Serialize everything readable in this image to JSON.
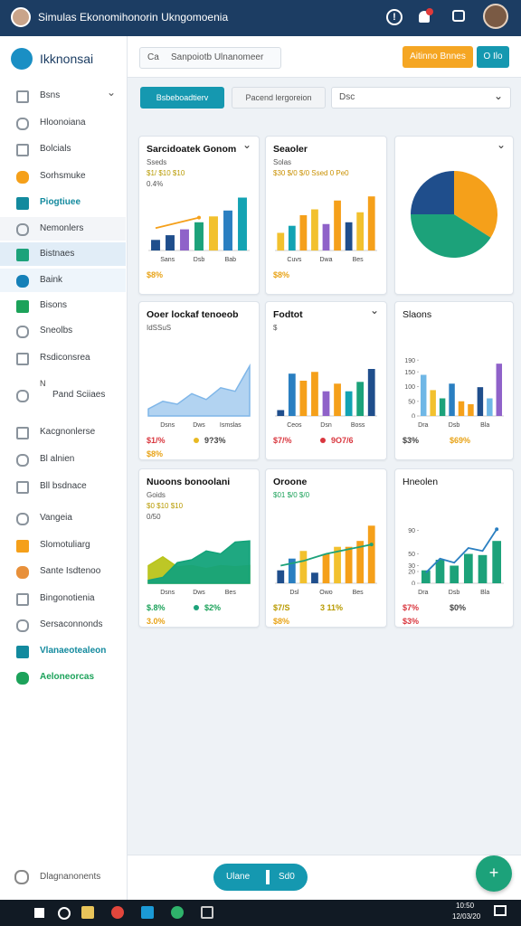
{
  "header": {
    "title": "Simulas Ekonomihonorin Ukngomoenia"
  },
  "sidebar": {
    "logo": "Ikknonsai",
    "items": [
      {
        "label": "Bsns",
        "expandable": true
      },
      {
        "label": "Hloonoiana"
      },
      {
        "label": "Bolcials"
      },
      {
        "label": "Sorhsmuke",
        "icon_color": "#f5a01a"
      },
      {
        "label": "Piogtiuee",
        "color": "#138a9e",
        "icon_color": "#138a9e"
      },
      {
        "label": "Nemonlers",
        "background": "#f3f5f8"
      },
      {
        "label": "Bistnaes",
        "background": "#e1edf7",
        "icon_color": "#1ca27a"
      },
      {
        "label": "Baink",
        "background": "#eef5fb",
        "icon_color": "#1580b8"
      },
      {
        "label": "Bisons",
        "icon_color": "#1ca25a"
      },
      {
        "label": "Sneolbs"
      },
      {
        "label": "Rsdiconsrea"
      },
      {
        "label": "Pand Sciiaes",
        "prefix": "N"
      },
      {
        "label": "Kacgnonlerse"
      },
      {
        "label": "Bl alnien"
      },
      {
        "label": "Bll bsdnace"
      },
      {
        "label": "Vangeia"
      },
      {
        "label": "Slomotuliarg",
        "icon_color": "#f5a01a"
      },
      {
        "label": "Sante Isdtenoo",
        "icon_color": "#e8903a"
      },
      {
        "label": "Bingonotienia"
      },
      {
        "label": "Sersaconnonds"
      },
      {
        "label": "Vlanaeotealeon",
        "color": "#138a9e",
        "icon_color": "#138a9e"
      },
      {
        "label": "Aeloneorcas",
        "color": "#1ca25a",
        "icon_color": "#1ca25a"
      }
    ],
    "footer": "Dlagnanonents"
  },
  "toolbar": {
    "search_prefix": "Ca",
    "search": "Sanpoiotb Ulnanomeer",
    "primary_button": "Aitinno Bnnes",
    "secondary_button": "O Ilo"
  },
  "filters": {
    "tab_active": "Bsbeboadtierv",
    "tab": "Pacend lergoreion",
    "dropdown": "Dsc"
  },
  "cards": [
    {
      "title": "Sarcidoatek Gonom",
      "menu": true,
      "lines": [
        {
          "text": "Sseds"
        },
        {
          "text": "$1/ $10 $10",
          "color": "#b89a00"
        },
        {
          "text": "0.4%"
        }
      ],
      "chart": {
        "type": "bar",
        "ylim": [
          0,
          100
        ],
        "series": [
          {
            "type": "bar",
            "colors": [
              "#1f4e8c",
              "#1f4e8c",
              "#8f62c9",
              "#1ca27a",
              "#f2c12e",
              "#2a7fc1",
              "#13a3b3"
            ],
            "values": [
              18,
              26,
              36,
              48,
              58,
              68,
              90
            ]
          },
          {
            "type": "line",
            "color": "#f5a01a",
            "values": [
              38,
              44,
              50,
              56,
              null,
              null,
              null
            ]
          }
        ]
      },
      "categories": [
        "Sans",
        "Dsb",
        "Bab"
      ],
      "footer": [
        {
          "text": "$8%",
          "color": "#e8a317"
        }
      ]
    },
    {
      "title": "Seaoler",
      "lines": [
        {
          "text": "Solas"
        },
        {
          "text": "$30 $/0 $/0  Ssed 0 Pe0",
          "color": "#c99000"
        }
      ],
      "chart": {
        "type": "bar",
        "ylim": [
          0,
          100
        ],
        "series": [
          {
            "type": "bar",
            "colors": [
              "#f2c12e",
              "#13a3b3",
              "#f5a01a",
              "#f2c12e",
              "#8f62c9",
              "#f5a01a",
              "#1f4e8c",
              "#f2c12e",
              "#f5a01a"
            ],
            "values": [
              30,
              42,
              60,
              70,
              45,
              85,
              48,
              65,
              92
            ]
          }
        ]
      },
      "categories": [
        "Cuvs",
        "Dwa",
        "Bes"
      ],
      "footer": [
        {
          "text": "$8%",
          "color": "#e8a317"
        }
      ]
    },
    {
      "menu": true,
      "chart": {
        "type": "pie",
        "values": [
          34,
          41,
          25
        ],
        "colors": [
          "#f5a01a",
          "#1ca27a",
          "#1f4e8c"
        ]
      }
    },
    {
      "title": "Ooer lockaf tenoeob",
      "lines": [
        {
          "text": "IdSSuS"
        }
      ],
      "chart": {
        "type": "area",
        "ylim": [
          0,
          100
        ],
        "series": [
          {
            "type": "area",
            "color": "#7fb6e8",
            "values": [
              12,
              25,
              20,
              38,
              28,
              48,
              42,
              85
            ]
          }
        ]
      },
      "categories": [
        "Dsns",
        "Dws",
        "Ismslas"
      ],
      "footer": [
        {
          "text": "$1/%",
          "color": "#d9363e"
        },
        {
          "text": "9?3%",
          "dot": "#e8b923"
        },
        {
          "text": "$8%",
          "color": "#e8a317"
        }
      ]
    },
    {
      "title": "Fodtot",
      "menu": true,
      "lines": [
        {
          "text": "$"
        }
      ],
      "chart": {
        "type": "bar",
        "ylim": [
          0,
          100
        ],
        "series": [
          {
            "type": "bar",
            "colors": [
              "#1f4e8c",
              "#2a7fc1",
              "#f5a01a",
              "#f5a01a",
              "#8f62c9",
              "#f5a01a",
              "#13a3b3",
              "#1ca27a",
              "#1f4e8c"
            ],
            "values": [
              10,
              72,
              60,
              75,
              42,
              55,
              42,
              58,
              80
            ]
          }
        ]
      },
      "categories": [
        "Ceos",
        "Dsn",
        "Boss"
      ],
      "footer": [
        {
          "text": "$7/%",
          "color": "#d9363e"
        },
        {
          "text": "9O7/6",
          "dot": "#d9363e",
          "color": "#d9363e"
        }
      ]
    },
    {
      "title": "Slaons",
      "lines": [],
      "chart": {
        "type": "bar",
        "ylim": [
          0,
          200
        ],
        "yticks": [
          0,
          50,
          100,
          150,
          190
        ],
        "series": [
          {
            "type": "bar",
            "colors": [
              "#6fb7e6",
              "#f2c12e",
              "#1ca27a",
              "#2a7fc1",
              "#f5a01a",
              "#f5a01a",
              "#1f4e8c",
              "#6fb7e6",
              "#8f62c9"
            ],
            "values": [
              140,
              88,
              60,
              110,
              50,
              40,
              98,
              60,
              178
            ]
          }
        ]
      },
      "categories": [
        "Dra",
        "Dsb",
        "Bla"
      ],
      "footer": [
        {
          "text": "$3%"
        },
        {
          "text": "$69%",
          "color": "#e8a317"
        }
      ]
    },
    {
      "title": "Nuoons bonoolani",
      "lines": [
        {
          "text": "Goids"
        },
        {
          "text": "$0 $10 $10",
          "color": "#b89a00"
        },
        {
          "text": "0/50"
        }
      ],
      "chart": {
        "type": "area",
        "ylim": [
          0,
          100
        ],
        "series": [
          {
            "type": "area",
            "color": "#b9c41a",
            "values": [
              30,
              45,
              28,
              30,
              25,
              30,
              28,
              30
            ]
          },
          {
            "type": "area",
            "color": "#13a37a",
            "values": [
              5,
              10,
              35,
              40,
              55,
              50,
              70,
              72
            ]
          }
        ]
      },
      "categories": [
        "Dsns",
        "Dws",
        "Bes"
      ],
      "footer": [
        {
          "text": "$.8%",
          "color": "#1ca25a"
        },
        {
          "text": "$2%",
          "dot": "#1ca27a",
          "color": "#1ca25a"
        },
        {
          "text": "3.0%",
          "color": "#e8a317"
        }
      ]
    },
    {
      "title": "Oroone",
      "lines": [
        {
          "text": "$01 $/0 $/0",
          "color": "#1ca25a"
        }
      ],
      "chart": {
        "type": "bar",
        "ylim": [
          0,
          100
        ],
        "series": [
          {
            "type": "bar",
            "colors": [
              "#1f4e8c",
              "#2a7fc1",
              "#f2c12e",
              "#1f4e8c",
              "#f5a01a",
              "#f2c12e",
              "#f5a01a",
              "#f5a01a",
              "#f5a01a"
            ],
            "values": [
              22,
              42,
              55,
              18,
              50,
              62,
              62,
              72,
              98
            ]
          },
          {
            "type": "line",
            "color": "#1ca27a",
            "values": [
              30,
              34,
              38,
              44,
              50,
              54,
              58,
              62,
              66
            ]
          }
        ]
      },
      "categories": [
        "Dsl",
        "Owo",
        "Bes"
      ],
      "footer": [
        {
          "text": "$7/S",
          "color": "#b89a00"
        },
        {
          "text": "3 11%",
          "color": "#b89a00"
        },
        {
          "text": "$8%",
          "color": "#e8a317"
        }
      ]
    },
    {
      "title": "Hneolen",
      "lines": [],
      "chart": {
        "type": "bar",
        "ylim": [
          0,
          100
        ],
        "yticks": [
          0,
          20,
          30,
          50,
          90
        ],
        "series": [
          {
            "type": "bar",
            "colors": [
              "#1ca27a",
              "#1ca27a",
              "#1ca27a",
              "#1ca27a",
              "#1ca27a",
              "#1ca27a"
            ],
            "values": [
              22,
              40,
              30,
              50,
              48,
              72
            ]
          },
          {
            "type": "line",
            "color": "#2a7fc1",
            "values": [
              18,
              42,
              35,
              60,
              55,
              92
            ]
          }
        ]
      },
      "categories": [
        "Dra",
        "Dsb",
        "Bla"
      ],
      "footer": [
        {
          "text": "$7%",
          "color": "#d9363e"
        },
        {
          "text": "$0%"
        },
        {
          "text": "$3%",
          "color": "#d9363e"
        }
      ]
    }
  ],
  "bottom_bar": {
    "button": "Ulane",
    "button_value": "Sd0"
  },
  "taskbar": {
    "time": "10:50",
    "date": "12/03/20"
  }
}
